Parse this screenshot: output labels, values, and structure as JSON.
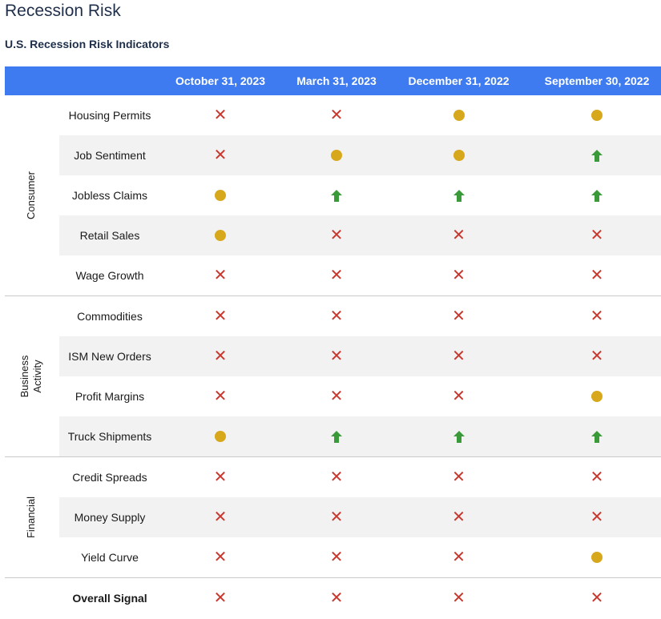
{
  "page": {
    "title": "Recession Risk",
    "subtitle": "U.S. Recession Risk Indicators"
  },
  "colors": {
    "header_bg": "#3f7bf0",
    "risk_x": "#c8372d",
    "neutral_dot": "#d7a81b",
    "up_arrow": "#3a9a3a",
    "row_shade": "#f2f2f2"
  },
  "chart_data": {
    "type": "table",
    "title": "U.S. Recession Risk Indicators",
    "columns": [
      "October 31, 2023",
      "March 31, 2023",
      "December 31, 2022",
      "September 30, 2022"
    ],
    "legend_icons": {
      "x": "x-icon",
      "dot": "dot-icon",
      "up": "up-arrow-icon"
    },
    "groups": [
      {
        "name": "Consumer",
        "rows": [
          {
            "label": "Housing Permits",
            "values": [
              "x",
              "x",
              "dot",
              "dot"
            ]
          },
          {
            "label": "Job Sentiment",
            "values": [
              "x",
              "dot",
              "dot",
              "up"
            ]
          },
          {
            "label": "Jobless Claims",
            "values": [
              "dot",
              "up",
              "up",
              "up"
            ]
          },
          {
            "label": "Retail Sales",
            "values": [
              "dot",
              "x",
              "x",
              "x"
            ]
          },
          {
            "label": "Wage Growth",
            "values": [
              "x",
              "x",
              "x",
              "x"
            ]
          }
        ]
      },
      {
        "name": "Business Activity",
        "rows": [
          {
            "label": "Commodities",
            "values": [
              "x",
              "x",
              "x",
              "x"
            ]
          },
          {
            "label": "ISM New Orders",
            "values": [
              "x",
              "x",
              "x",
              "x"
            ]
          },
          {
            "label": "Profit Margins",
            "values": [
              "x",
              "x",
              "x",
              "dot"
            ]
          },
          {
            "label": "Truck Shipments",
            "values": [
              "dot",
              "up",
              "up",
              "up"
            ]
          }
        ]
      },
      {
        "name": "Financial",
        "rows": [
          {
            "label": "Credit Spreads",
            "values": [
              "x",
              "x",
              "x",
              "x"
            ]
          },
          {
            "label": "Money Supply",
            "values": [
              "x",
              "x",
              "x",
              "x"
            ]
          },
          {
            "label": "Yield Curve",
            "values": [
              "x",
              "x",
              "x",
              "dot"
            ]
          }
        ]
      }
    ],
    "overall": {
      "label": "Overall Signal",
      "values": [
        "x",
        "x",
        "x",
        "x"
      ]
    }
  }
}
